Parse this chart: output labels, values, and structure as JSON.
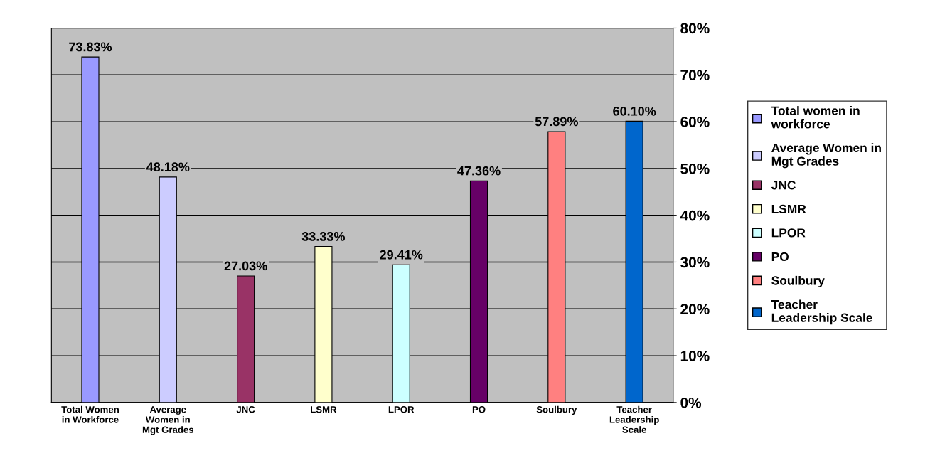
{
  "chart_data": {
    "type": "bar",
    "categories": [
      "Total Women\nin Workforce",
      "Average\nWomen in\nMgt Grades",
      "JNC",
      "LSMR",
      "LPOR",
      "PO",
      "Soulbury",
      "Teacher\nLeadership\nScale"
    ],
    "series": [
      {
        "name": "Total women in\nworkforce",
        "color": "#9999ff",
        "values": [
          73.83,
          null,
          null,
          null,
          null,
          null,
          null,
          null
        ],
        "value_labels": [
          "73.83%",
          null,
          null,
          null,
          null,
          null,
          null,
          null
        ]
      },
      {
        "name": "Average Women in\nMgt Grades",
        "color": "#ccccff",
        "values": [
          null,
          48.18,
          null,
          null,
          null,
          null,
          null,
          null
        ],
        "value_labels": [
          null,
          "48.18%",
          null,
          null,
          null,
          null,
          null,
          null
        ]
      },
      {
        "name": "JNC",
        "color": "#993366",
        "values": [
          null,
          null,
          27.03,
          null,
          null,
          null,
          null,
          null
        ],
        "value_labels": [
          null,
          null,
          "27.03%",
          null,
          null,
          null,
          null,
          null
        ]
      },
      {
        "name": "LSMR",
        "color": "#ffffcc",
        "values": [
          null,
          null,
          null,
          33.33,
          null,
          null,
          null,
          null
        ],
        "value_labels": [
          null,
          null,
          null,
          "33.33%",
          null,
          null,
          null,
          null
        ]
      },
      {
        "name": "LPOR",
        "color": "#ccffff",
        "values": [
          null,
          null,
          null,
          null,
          29.41,
          null,
          null,
          null
        ],
        "value_labels": [
          null,
          null,
          null,
          null,
          "29.41%",
          null,
          null,
          null
        ]
      },
      {
        "name": "PO",
        "color": "#660066",
        "values": [
          null,
          null,
          null,
          null,
          null,
          47.36,
          null,
          null
        ],
        "value_labels": [
          null,
          null,
          null,
          null,
          null,
          "47.36%",
          null,
          null
        ]
      },
      {
        "name": "Soulbury",
        "color": "#ff8080",
        "values": [
          null,
          null,
          null,
          null,
          null,
          null,
          57.89,
          null
        ],
        "value_labels": [
          null,
          null,
          null,
          null,
          null,
          null,
          "57.89%",
          null
        ]
      },
      {
        "name": "Teacher\nLeadership Scale",
        "color": "#0066cc",
        "values": [
          null,
          null,
          null,
          null,
          null,
          null,
          null,
          60.1
        ],
        "value_labels": [
          null,
          null,
          null,
          null,
          null,
          null,
          null,
          "60.10%"
        ]
      }
    ],
    "ylim": [
      0,
      80
    ],
    "yticks": [
      {
        "value": 0,
        "label": "0%"
      },
      {
        "value": 10,
        "label": "10%"
      },
      {
        "value": 20,
        "label": "20%"
      },
      {
        "value": 30,
        "label": "30%"
      },
      {
        "value": 40,
        "label": "40%"
      },
      {
        "value": 50,
        "label": "50%"
      },
      {
        "value": 60,
        "label": "60%"
      },
      {
        "value": 70,
        "label": "70%"
      },
      {
        "value": 80,
        "label": "80%"
      }
    ],
    "grid": "y",
    "legend": "right"
  }
}
